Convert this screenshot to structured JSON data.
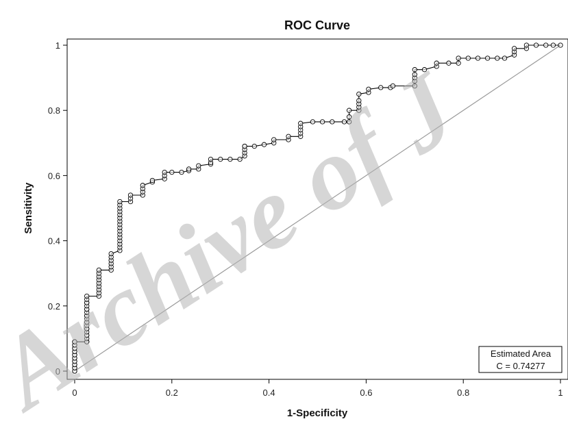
{
  "watermark": "Archive of J",
  "chart_data": {
    "type": "line",
    "title": "ROC Curve",
    "xlabel": "1-Specificity",
    "ylabel": "Sensitivity",
    "xlim": [
      0,
      1
    ],
    "ylim": [
      0,
      1
    ],
    "xticks": [
      "0",
      "0.2",
      "0.4",
      "0.6",
      "0.8",
      "1"
    ],
    "yticks": [
      "0",
      "0.2",
      "0.4",
      "0.6",
      "0.8",
      "1"
    ],
    "grid": false,
    "reference_line": "diagonal",
    "inset": {
      "line1": "Estimated Area",
      "line2": "C =  0.74277",
      "value": 0.74277,
      "placement": "bottom-right"
    },
    "series": [
      {
        "x": [
          0.0,
          0.0,
          0.0,
          0.0,
          0.0,
          0.0,
          0.0,
          0.0,
          0.0,
          0.0,
          0.0,
          0.0,
          0.0,
          0.0,
          0.0,
          0.0,
          0.0,
          0.0,
          0.0,
          0.0,
          0.025,
          0.025,
          0.025,
          0.025,
          0.025,
          0.025,
          0.025,
          0.025,
          0.025,
          0.025,
          0.025,
          0.025,
          0.025,
          0.025,
          0.025,
          0.025,
          0.025,
          0.025,
          0.025,
          0.025,
          0.025,
          0.025,
          0.05,
          0.05,
          0.05,
          0.05,
          0.05,
          0.05,
          0.05,
          0.05,
          0.05,
          0.075,
          0.075,
          0.075,
          0.075,
          0.075,
          0.075,
          0.093,
          0.093,
          0.093,
          0.093,
          0.093,
          0.093,
          0.093,
          0.093,
          0.093,
          0.093,
          0.093,
          0.093,
          0.093,
          0.093,
          0.093,
          0.093,
          0.115,
          0.115,
          0.115,
          0.14,
          0.14,
          0.14,
          0.14,
          0.16,
          0.16,
          0.185,
          0.185,
          0.185,
          0.2,
          0.22,
          0.235,
          0.235,
          0.255,
          0.255,
          0.28,
          0.28,
          0.28,
          0.3,
          0.32,
          0.34,
          0.35,
          0.35,
          0.35,
          0.35,
          0.35,
          0.37,
          0.39,
          0.41,
          0.41,
          0.44,
          0.44,
          0.465,
          0.465,
          0.465,
          0.465,
          0.465,
          0.49,
          0.51,
          0.53,
          0.555,
          0.565,
          0.565,
          0.565,
          0.585,
          0.585,
          0.585,
          0.585,
          0.585,
          0.605,
          0.605,
          0.63,
          0.65,
          0.655,
          0.7,
          0.7,
          0.7,
          0.7,
          0.7,
          0.72,
          0.745,
          0.745,
          0.77,
          0.79,
          0.79,
          0.81,
          0.83,
          0.85,
          0.87,
          0.885,
          0.905,
          0.905,
          0.905,
          0.93,
          0.93,
          0.95,
          0.97,
          0.985,
          1.0
        ],
        "y": [
          0.0,
          0.01,
          0.02,
          0.03,
          0.04,
          0.05,
          0.06,
          0.07,
          0.08,
          0.09,
          0.0,
          0.01,
          0.02,
          0.03,
          0.04,
          0.05,
          0.06,
          0.07,
          0.08,
          0.09,
          0.09,
          0.1,
          0.11,
          0.12,
          0.13,
          0.14,
          0.15,
          0.16,
          0.17,
          0.18,
          0.19,
          0.2,
          0.21,
          0.22,
          0.23,
          0.09,
          0.11,
          0.13,
          0.15,
          0.17,
          0.19,
          0.21,
          0.23,
          0.24,
          0.25,
          0.26,
          0.27,
          0.28,
          0.29,
          0.3,
          0.31,
          0.31,
          0.32,
          0.33,
          0.34,
          0.35,
          0.36,
          0.37,
          0.39,
          0.41,
          0.43,
          0.45,
          0.47,
          0.49,
          0.51,
          0.52,
          0.38,
          0.4,
          0.42,
          0.44,
          0.46,
          0.48,
          0.5,
          0.52,
          0.53,
          0.54,
          0.54,
          0.55,
          0.56,
          0.57,
          0.58,
          0.585,
          0.59,
          0.6,
          0.61,
          0.61,
          0.61,
          0.615,
          0.62,
          0.62,
          0.63,
          0.635,
          0.64,
          0.65,
          0.65,
          0.65,
          0.65,
          0.66,
          0.67,
          0.68,
          0.69,
          0.69,
          0.69,
          0.695,
          0.7,
          0.71,
          0.71,
          0.72,
          0.72,
          0.73,
          0.74,
          0.75,
          0.76,
          0.765,
          0.765,
          0.765,
          0.765,
          0.765,
          0.78,
          0.8,
          0.8,
          0.81,
          0.82,
          0.83,
          0.85,
          0.855,
          0.865,
          0.87,
          0.87,
          0.875,
          0.875,
          0.89,
          0.9,
          0.91,
          0.925,
          0.925,
          0.935,
          0.945,
          0.945,
          0.945,
          0.96,
          0.96,
          0.96,
          0.96,
          0.96,
          0.96,
          0.97,
          0.98,
          0.99,
          0.99,
          1.0,
          1.0,
          1.0,
          1.0,
          1.0
        ]
      }
    ]
  }
}
